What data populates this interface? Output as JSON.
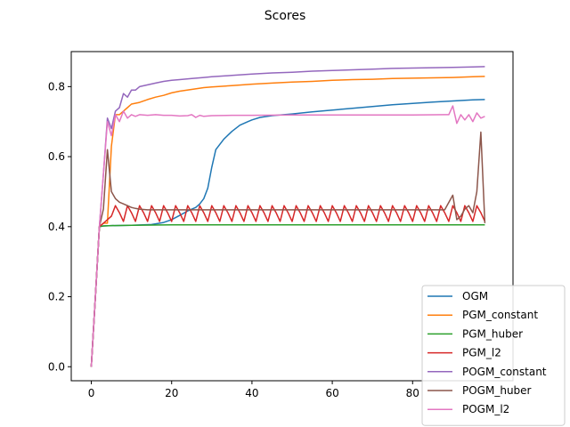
{
  "chart_data": {
    "type": "line",
    "title": "Scores",
    "xlabel": "",
    "ylabel": "",
    "xlim": [
      -5,
      105
    ],
    "ylim": [
      -0.04,
      0.9
    ],
    "xticks": [
      0,
      20,
      40,
      60,
      80
    ],
    "yticks": [
      0.0,
      0.2,
      0.4,
      0.6,
      0.8
    ],
    "xtick_labels": [
      "0",
      "20",
      "40",
      "60",
      "80"
    ],
    "ytick_labels": [
      "0.0",
      "0.2",
      "0.4",
      "0.6",
      "0.8"
    ],
    "grid": false,
    "legend_position": "bottom-right",
    "series": [
      {
        "name": "OGM",
        "color": "#1f77b4",
        "points": [
          [
            0,
            0.0
          ],
          [
            1,
            0.2
          ],
          [
            2,
            0.4
          ],
          [
            3,
            0.402
          ],
          [
            5,
            0.403
          ],
          [
            10,
            0.404
          ],
          [
            15,
            0.406
          ],
          [
            18,
            0.412
          ],
          [
            20,
            0.42
          ],
          [
            22,
            0.432
          ],
          [
            24,
            0.445
          ],
          [
            26,
            0.455
          ],
          [
            27,
            0.465
          ],
          [
            28,
            0.48
          ],
          [
            29,
            0.51
          ],
          [
            30,
            0.57
          ],
          [
            31,
            0.62
          ],
          [
            33,
            0.65
          ],
          [
            35,
            0.672
          ],
          [
            37,
            0.69
          ],
          [
            39,
            0.7
          ],
          [
            40,
            0.705
          ],
          [
            42,
            0.712
          ],
          [
            45,
            0.717
          ],
          [
            50,
            0.722
          ],
          [
            55,
            0.728
          ],
          [
            60,
            0.733
          ],
          [
            65,
            0.738
          ],
          [
            70,
            0.743
          ],
          [
            75,
            0.748
          ],
          [
            80,
            0.752
          ],
          [
            85,
            0.756
          ],
          [
            90,
            0.759
          ],
          [
            95,
            0.762
          ],
          [
            98,
            0.763
          ]
        ]
      },
      {
        "name": "PGM_constant",
        "color": "#ff7f0e",
        "points": [
          [
            0,
            0.0
          ],
          [
            1,
            0.2
          ],
          [
            2,
            0.4
          ],
          [
            3,
            0.41
          ],
          [
            4,
            0.41
          ],
          [
            5,
            0.63
          ],
          [
            6,
            0.72
          ],
          [
            7,
            0.72
          ],
          [
            8,
            0.73
          ],
          [
            9,
            0.74
          ],
          [
            10,
            0.75
          ],
          [
            12,
            0.755
          ],
          [
            14,
            0.763
          ],
          [
            16,
            0.77
          ],
          [
            18,
            0.775
          ],
          [
            20,
            0.782
          ],
          [
            22,
            0.787
          ],
          [
            25,
            0.792
          ],
          [
            28,
            0.797
          ],
          [
            30,
            0.799
          ],
          [
            35,
            0.803
          ],
          [
            40,
            0.807
          ],
          [
            45,
            0.81
          ],
          [
            50,
            0.813
          ],
          [
            55,
            0.815
          ],
          [
            60,
            0.818
          ],
          [
            65,
            0.82
          ],
          [
            70,
            0.821
          ],
          [
            75,
            0.823
          ],
          [
            80,
            0.824
          ],
          [
            85,
            0.825
          ],
          [
            90,
            0.826
          ],
          [
            95,
            0.828
          ],
          [
            98,
            0.829
          ]
        ]
      },
      {
        "name": "PGM_huber",
        "color": "#2ca02c",
        "points": [
          [
            0,
            0.0
          ],
          [
            1,
            0.2
          ],
          [
            2,
            0.4
          ],
          [
            3,
            0.402
          ],
          [
            5,
            0.403
          ],
          [
            10,
            0.404
          ],
          [
            20,
            0.405
          ],
          [
            40,
            0.405
          ],
          [
            60,
            0.405
          ],
          [
            80,
            0.405
          ],
          [
            98,
            0.405
          ]
        ]
      },
      {
        "name": "PGM_l2",
        "color": "#d62728",
        "points": [
          [
            0,
            0.0
          ],
          [
            1,
            0.2
          ],
          [
            2,
            0.4
          ],
          [
            3,
            0.41
          ],
          [
            4,
            0.42
          ],
          [
            5,
            0.43
          ],
          [
            6,
            0.46
          ],
          [
            7,
            0.44
          ],
          [
            8,
            0.415
          ],
          [
            9,
            0.46
          ],
          [
            10,
            0.44
          ],
          [
            11,
            0.415
          ],
          [
            12,
            0.46
          ],
          [
            13,
            0.44
          ],
          [
            14,
            0.415
          ],
          [
            15,
            0.46
          ],
          [
            16,
            0.44
          ],
          [
            17,
            0.415
          ],
          [
            18,
            0.46
          ],
          [
            19,
            0.44
          ],
          [
            20,
            0.415
          ],
          [
            21,
            0.46
          ],
          [
            22,
            0.44
          ],
          [
            23,
            0.415
          ],
          [
            24,
            0.46
          ],
          [
            25,
            0.44
          ],
          [
            26,
            0.415
          ],
          [
            27,
            0.46
          ],
          [
            28,
            0.44
          ],
          [
            29,
            0.415
          ],
          [
            30,
            0.46
          ],
          [
            31,
            0.44
          ],
          [
            32,
            0.415
          ],
          [
            33,
            0.46
          ],
          [
            34,
            0.44
          ],
          [
            35,
            0.415
          ],
          [
            36,
            0.46
          ],
          [
            37,
            0.44
          ],
          [
            38,
            0.415
          ],
          [
            39,
            0.46
          ],
          [
            40,
            0.44
          ],
          [
            41,
            0.415
          ],
          [
            42,
            0.46
          ],
          [
            43,
            0.44
          ],
          [
            44,
            0.415
          ],
          [
            45,
            0.46
          ],
          [
            46,
            0.44
          ],
          [
            47,
            0.415
          ],
          [
            48,
            0.46
          ],
          [
            49,
            0.44
          ],
          [
            50,
            0.415
          ],
          [
            51,
            0.46
          ],
          [
            52,
            0.44
          ],
          [
            53,
            0.415
          ],
          [
            54,
            0.46
          ],
          [
            55,
            0.44
          ],
          [
            56,
            0.415
          ],
          [
            57,
            0.46
          ],
          [
            58,
            0.44
          ],
          [
            59,
            0.415
          ],
          [
            60,
            0.46
          ],
          [
            61,
            0.44
          ],
          [
            62,
            0.415
          ],
          [
            63,
            0.46
          ],
          [
            64,
            0.44
          ],
          [
            65,
            0.415
          ],
          [
            66,
            0.46
          ],
          [
            67,
            0.44
          ],
          [
            68,
            0.415
          ],
          [
            69,
            0.46
          ],
          [
            70,
            0.44
          ],
          [
            71,
            0.415
          ],
          [
            72,
            0.46
          ],
          [
            73,
            0.44
          ],
          [
            74,
            0.415
          ],
          [
            75,
            0.46
          ],
          [
            76,
            0.44
          ],
          [
            77,
            0.415
          ],
          [
            78,
            0.46
          ],
          [
            79,
            0.44
          ],
          [
            80,
            0.415
          ],
          [
            81,
            0.46
          ],
          [
            82,
            0.44
          ],
          [
            83,
            0.415
          ],
          [
            84,
            0.46
          ],
          [
            85,
            0.44
          ],
          [
            86,
            0.415
          ],
          [
            87,
            0.46
          ],
          [
            88,
            0.44
          ],
          [
            89,
            0.415
          ],
          [
            90,
            0.46
          ],
          [
            91,
            0.44
          ],
          [
            92,
            0.415
          ],
          [
            93,
            0.46
          ],
          [
            94,
            0.44
          ],
          [
            95,
            0.415
          ],
          [
            96,
            0.46
          ],
          [
            97,
            0.44
          ],
          [
            98,
            0.415
          ]
        ]
      },
      {
        "name": "POGM_constant",
        "color": "#9467bd",
        "points": [
          [
            0,
            0.0
          ],
          [
            1,
            0.2
          ],
          [
            2,
            0.4
          ],
          [
            3,
            0.55
          ],
          [
            4,
            0.71
          ],
          [
            5,
            0.68
          ],
          [
            6,
            0.73
          ],
          [
            7,
            0.74
          ],
          [
            8,
            0.78
          ],
          [
            9,
            0.77
          ],
          [
            10,
            0.79
          ],
          [
            11,
            0.79
          ],
          [
            12,
            0.8
          ],
          [
            14,
            0.805
          ],
          [
            16,
            0.81
          ],
          [
            18,
            0.815
          ],
          [
            20,
            0.818
          ],
          [
            22,
            0.82
          ],
          [
            25,
            0.823
          ],
          [
            28,
            0.826
          ],
          [
            30,
            0.828
          ],
          [
            35,
            0.832
          ],
          [
            40,
            0.836
          ],
          [
            45,
            0.839
          ],
          [
            50,
            0.841
          ],
          [
            55,
            0.844
          ],
          [
            60,
            0.846
          ],
          [
            65,
            0.848
          ],
          [
            70,
            0.85
          ],
          [
            75,
            0.852
          ],
          [
            80,
            0.853
          ],
          [
            85,
            0.854
          ],
          [
            90,
            0.855
          ],
          [
            95,
            0.856
          ],
          [
            98,
            0.857
          ]
        ]
      },
      {
        "name": "POGM_huber",
        "color": "#8c564b",
        "points": [
          [
            0,
            0.0
          ],
          [
            1,
            0.2
          ],
          [
            2,
            0.4
          ],
          [
            3,
            0.45
          ],
          [
            4,
            0.62
          ],
          [
            5,
            0.5
          ],
          [
            6,
            0.48
          ],
          [
            7,
            0.47
          ],
          [
            8,
            0.465
          ],
          [
            9,
            0.46
          ],
          [
            10,
            0.455
          ],
          [
            11,
            0.452
          ],
          [
            12,
            0.45
          ],
          [
            14,
            0.448
          ],
          [
            16,
            0.448
          ],
          [
            18,
            0.448
          ],
          [
            20,
            0.448
          ],
          [
            25,
            0.448
          ],
          [
            30,
            0.448
          ],
          [
            40,
            0.448
          ],
          [
            50,
            0.448
          ],
          [
            60,
            0.448
          ],
          [
            70,
            0.448
          ],
          [
            80,
            0.448
          ],
          [
            88,
            0.448
          ],
          [
            90,
            0.49
          ],
          [
            91,
            0.42
          ],
          [
            92,
            0.43
          ],
          [
            93,
            0.45
          ],
          [
            94,
            0.46
          ],
          [
            95,
            0.44
          ],
          [
            96,
            0.5
          ],
          [
            97,
            0.67
          ],
          [
            98,
            0.41
          ]
        ]
      },
      {
        "name": "POGM_l2",
        "color": "#e377c2",
        "points": [
          [
            0,
            0.0
          ],
          [
            1,
            0.2
          ],
          [
            2,
            0.4
          ],
          [
            3,
            0.55
          ],
          [
            4,
            0.7
          ],
          [
            5,
            0.66
          ],
          [
            6,
            0.72
          ],
          [
            7,
            0.7
          ],
          [
            8,
            0.73
          ],
          [
            9,
            0.71
          ],
          [
            10,
            0.72
          ],
          [
            11,
            0.715
          ],
          [
            12,
            0.72
          ],
          [
            14,
            0.718
          ],
          [
            16,
            0.72
          ],
          [
            18,
            0.718
          ],
          [
            20,
            0.718
          ],
          [
            22,
            0.716
          ],
          [
            24,
            0.717
          ],
          [
            25,
            0.72
          ],
          [
            26,
            0.712
          ],
          [
            27,
            0.718
          ],
          [
            28,
            0.715
          ],
          [
            30,
            0.717
          ],
          [
            35,
            0.718
          ],
          [
            40,
            0.718
          ],
          [
            50,
            0.719
          ],
          [
            60,
            0.719
          ],
          [
            70,
            0.719
          ],
          [
            80,
            0.719
          ],
          [
            88,
            0.72
          ],
          [
            89,
            0.72
          ],
          [
            90,
            0.745
          ],
          [
            91,
            0.695
          ],
          [
            92,
            0.72
          ],
          [
            93,
            0.705
          ],
          [
            94,
            0.72
          ],
          [
            95,
            0.7
          ],
          [
            96,
            0.725
          ],
          [
            97,
            0.71
          ],
          [
            98,
            0.715
          ]
        ]
      }
    ]
  }
}
